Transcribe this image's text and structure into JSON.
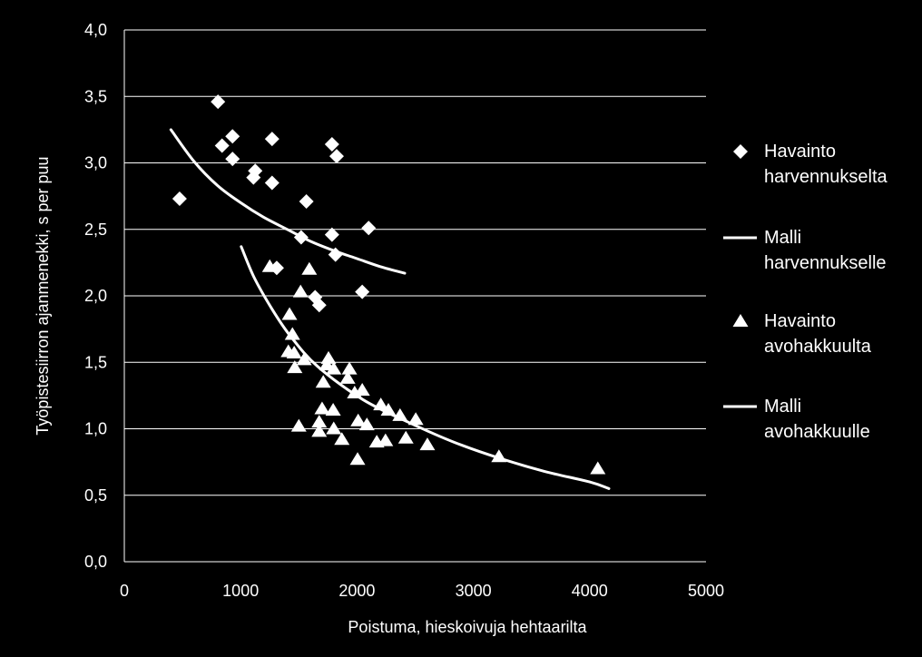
{
  "chart_data": {
    "type": "scatter",
    "xlabel": "Poistuma, hieskoivuja hehtaarilta",
    "ylabel": "Työpistesiirron ajanmenekki, s per puu",
    "xlim": [
      0,
      5000
    ],
    "ylim": [
      0,
      4
    ],
    "xticks": [
      0,
      1000,
      2000,
      3000,
      4000,
      5000
    ],
    "xtick_labels": [
      "0",
      "1000",
      "2000",
      "3000",
      "4000",
      "5000"
    ],
    "yticks": [
      0,
      0.5,
      1,
      1.5,
      2,
      2.5,
      3,
      3.5,
      4
    ],
    "ytick_labels": [
      "0,0",
      "0,5",
      "1,0",
      "1,5",
      "2,0",
      "2,5",
      "3,0",
      "3,5",
      "4,0"
    ],
    "grid": "horizontal",
    "legend_position": "right",
    "series": [
      {
        "name": "Havainto harvennukselta",
        "type": "scatter",
        "marker": "diamond",
        "color": "#ffffff",
        "points": [
          [
            475,
            2.73
          ],
          [
            805,
            3.46
          ],
          [
            840,
            3.13
          ],
          [
            930,
            3.2
          ],
          [
            930,
            3.03
          ],
          [
            1125,
            2.94
          ],
          [
            1110,
            2.89
          ],
          [
            1270,
            3.18
          ],
          [
            1270,
            2.85
          ],
          [
            1565,
            2.71
          ],
          [
            1785,
            3.14
          ],
          [
            1825,
            3.05
          ],
          [
            1520,
            2.44
          ],
          [
            1785,
            2.46
          ],
          [
            2100,
            2.51
          ],
          [
            1815,
            2.31
          ],
          [
            1310,
            2.21
          ],
          [
            1640,
            1.99
          ],
          [
            1675,
            1.93
          ],
          [
            2045,
            2.03
          ]
        ]
      },
      {
        "name": "Malli harvennukselle",
        "type": "line",
        "color": "#ffffff",
        "points": [
          [
            400,
            3.25
          ],
          [
            600,
            3.01
          ],
          [
            800,
            2.83
          ],
          [
            1000,
            2.7
          ],
          [
            1200,
            2.59
          ],
          [
            1400,
            2.5
          ],
          [
            1600,
            2.41
          ],
          [
            1800,
            2.34
          ],
          [
            2000,
            2.28
          ],
          [
            2200,
            2.22
          ],
          [
            2410,
            2.17
          ]
        ]
      },
      {
        "name": "Havainto avohakkuulta",
        "type": "scatter",
        "marker": "triangle",
        "color": "#ffffff",
        "points": [
          [
            1250,
            2.22
          ],
          [
            1590,
            2.2
          ],
          [
            1515,
            2.03
          ],
          [
            1420,
            1.86
          ],
          [
            1445,
            1.71
          ],
          [
            1410,
            1.58
          ],
          [
            1460,
            1.57
          ],
          [
            1545,
            1.52
          ],
          [
            1465,
            1.46
          ],
          [
            1755,
            1.53
          ],
          [
            1740,
            1.48
          ],
          [
            1800,
            1.45
          ],
          [
            1935,
            1.45
          ],
          [
            1920,
            1.38
          ],
          [
            1710,
            1.35
          ],
          [
            1980,
            1.27
          ],
          [
            2045,
            1.29
          ],
          [
            1700,
            1.15
          ],
          [
            1795,
            1.14
          ],
          [
            2205,
            1.18
          ],
          [
            2270,
            1.14
          ],
          [
            2370,
            1.1
          ],
          [
            2505,
            1.07
          ],
          [
            1675,
            1.05
          ],
          [
            1500,
            1.02
          ],
          [
            2010,
            1.06
          ],
          [
            2085,
            1.03
          ],
          [
            1800,
            1.0
          ],
          [
            1675,
            0.98
          ],
          [
            1870,
            0.92
          ],
          [
            2170,
            0.9
          ],
          [
            2245,
            0.91
          ],
          [
            2420,
            0.93
          ],
          [
            2605,
            0.88
          ],
          [
            2005,
            0.77
          ],
          [
            3220,
            0.79
          ],
          [
            4070,
            0.7
          ]
        ]
      },
      {
        "name": "Malli avohakkuulle",
        "type": "line",
        "color": "#ffffff",
        "points": [
          [
            1005,
            2.37
          ],
          [
            1115,
            2.14
          ],
          [
            1270,
            1.9
          ],
          [
            1425,
            1.7
          ],
          [
            1660,
            1.47
          ],
          [
            2050,
            1.22
          ],
          [
            2440,
            1.05
          ],
          [
            2830,
            0.9
          ],
          [
            3220,
            0.78
          ],
          [
            3610,
            0.68
          ],
          [
            4000,
            0.6
          ],
          [
            4165,
            0.55
          ]
        ]
      }
    ]
  },
  "colors": {
    "background": "#000000",
    "foreground": "#ffffff"
  }
}
